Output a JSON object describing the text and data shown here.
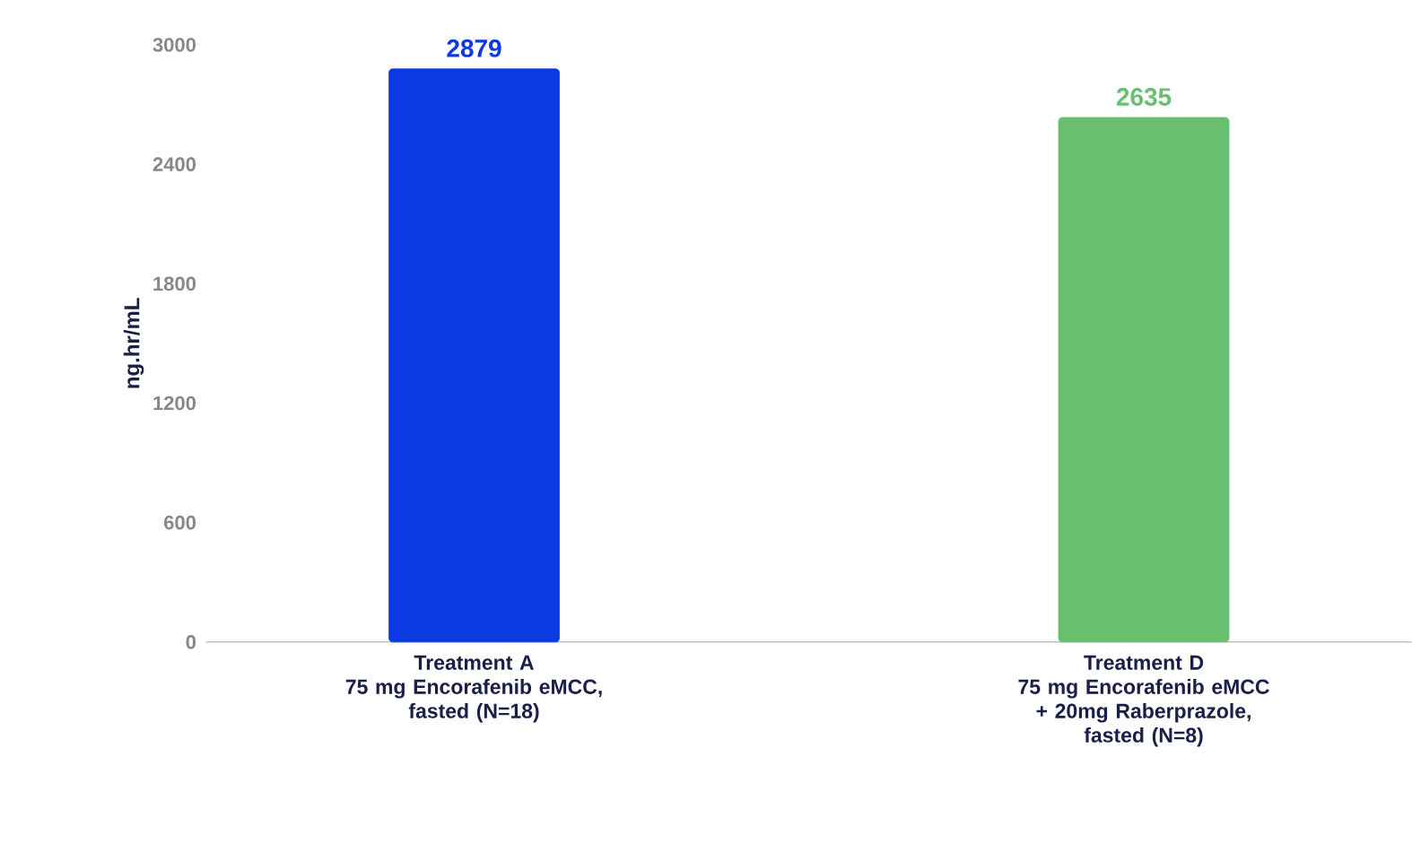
{
  "chart_data": {
    "type": "bar",
    "ylabel": "ng.hr/mL",
    "categories": [
      "Treatment A\n75 mg Encorafenib eMCC,\nfasted (N=18)",
      "Treatment D\n75 mg Encorafenib eMCC\n+ 20mg Raberprazole,\nfasted (N=8)"
    ],
    "values": [
      2879,
      2635
    ],
    "colors": [
      "#0b3be0",
      "#69bf70"
    ],
    "ylim": [
      0,
      3000
    ],
    "yticks": [
      0,
      600,
      1200,
      1800,
      2400,
      3000
    ],
    "data_labels": true
  }
}
